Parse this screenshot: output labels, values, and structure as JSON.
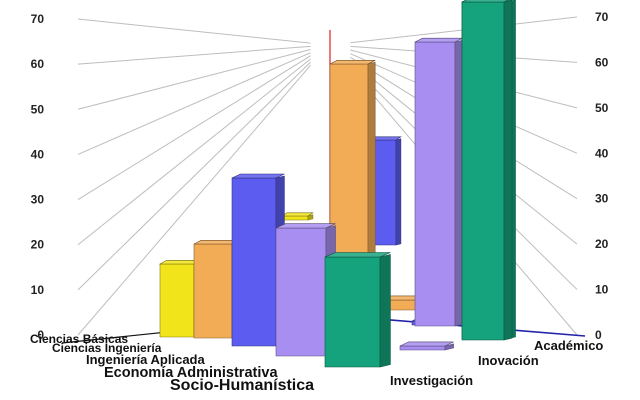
{
  "chart_data": {
    "type": "bar",
    "variant": "3d-bar",
    "categories": [
      "Ciencias Básicas",
      "Ciencias Ingeniería",
      "Ingeniería Aplicada",
      "Economía Administrativa",
      "Socio-Humanística"
    ],
    "x": [
      "Académico",
      "Inovación",
      "Investigación"
    ],
    "series": [
      {
        "values": [
          15,
          66,
          73
        ],
        "color": "#f2e41a"
      },
      {
        "values": [
          19,
          25,
          60
        ],
        "color": "#f3ac56"
      },
      {
        "values": [
          35,
          20,
          44
        ],
        "color": "#5c5cf0"
      },
      {
        "values": [
          24,
          8,
          65
        ],
        "color": "#a78ef0"
      },
      {
        "values": [
          18,
          2,
          73
        ],
        "color": "#14a37c"
      }
    ],
    "yticks": [
      0,
      10,
      20,
      30,
      40,
      50,
      60,
      70
    ],
    "ylim": [
      0,
      70
    ],
    "title": "",
    "xlabel": "",
    "ylabel": "",
    "grid": true
  }
}
